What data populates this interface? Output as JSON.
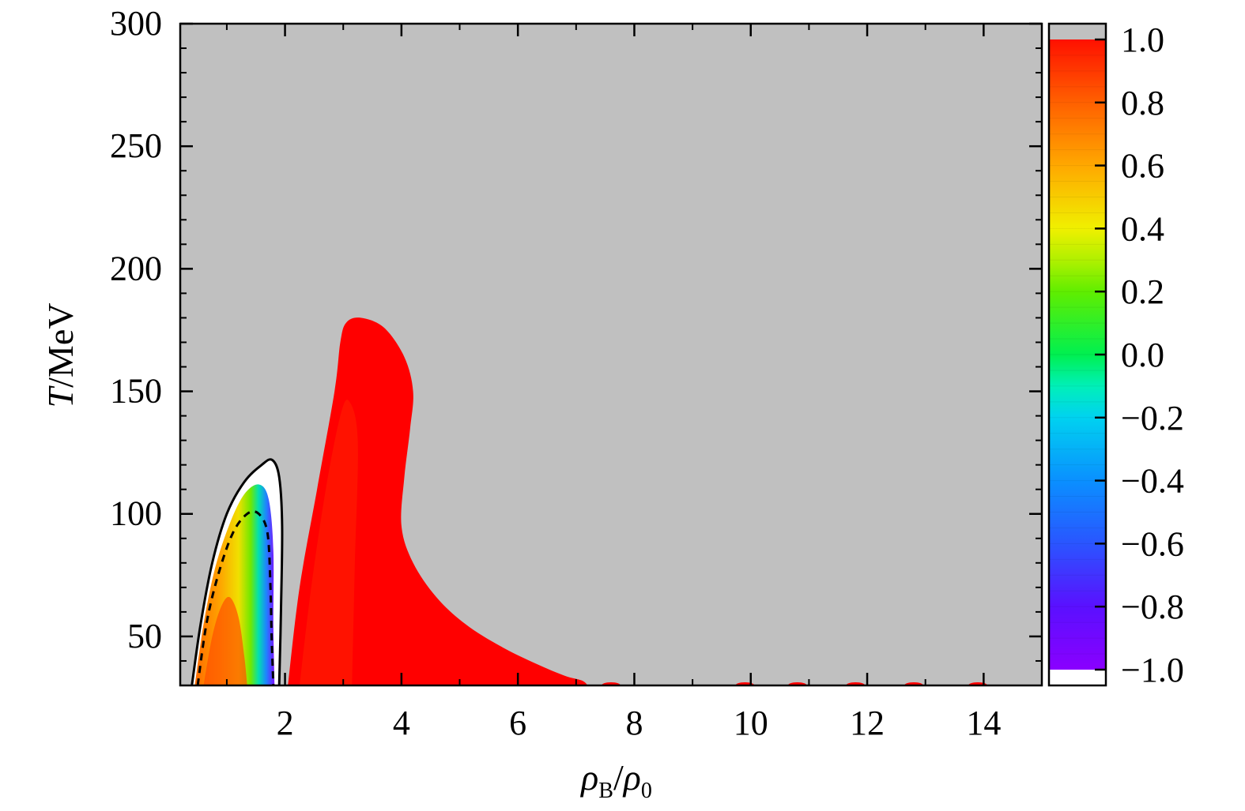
{
  "chart_data": {
    "type": "heatmap",
    "xlabel": {
      "main": "ρ",
      "sub1": "B",
      "slash": "/",
      "main2": "ρ",
      "sub2": "0"
    },
    "ylabel": {
      "italic": "T",
      "rest": "/MeV"
    },
    "xlim": [
      0.2,
      15
    ],
    "ylim": [
      30,
      300
    ],
    "x_ticks": [
      2,
      4,
      6,
      8,
      10,
      12,
      14
    ],
    "x_tick_labels": [
      "2",
      "4",
      "6",
      "8",
      "10",
      "12",
      "14"
    ],
    "y_ticks": [
      50,
      100,
      150,
      200,
      250,
      300
    ],
    "y_tick_labels": [
      "50",
      "100",
      "150",
      "200",
      "250",
      "300"
    ],
    "colorbar": {
      "range": [
        -1.0,
        1.0
      ],
      "ticks": [
        1.0,
        0.8,
        0.6,
        0.4,
        0.2,
        0.0,
        -0.2,
        -0.4,
        -0.6,
        -0.8,
        -1.0
      ],
      "tick_labels": [
        "1.0",
        "0.8",
        "0.6",
        "0.4",
        "0.2",
        "0.0",
        "−0.2",
        "−0.4",
        "−0.6",
        "−0.8",
        "−1.0"
      ],
      "above_range_color": "#c0c0c0",
      "below_range_color": "#ffffff"
    },
    "background_color": "#c0c0c0",
    "regions": [
      {
        "name": "region-red",
        "value": 1.0,
        "color": "#ff0000",
        "boundary": [
          [
            2.05,
            30
          ],
          [
            2.25,
            70
          ],
          [
            2.55,
            110
          ],
          [
            2.85,
            150
          ],
          [
            2.95,
            170
          ],
          [
            3.05,
            178
          ],
          [
            3.3,
            180
          ],
          [
            3.7,
            176
          ],
          [
            4.05,
            164
          ],
          [
            4.2,
            150
          ],
          [
            4.15,
            135
          ],
          [
            4.05,
            115
          ],
          [
            4.0,
            95
          ],
          [
            4.2,
            80
          ],
          [
            4.6,
            66
          ],
          [
            5.1,
            55
          ],
          [
            5.7,
            46
          ],
          [
            6.3,
            39
          ],
          [
            6.8,
            34
          ],
          [
            7.1,
            32
          ],
          [
            7.2,
            30
          ]
        ]
      },
      {
        "name": "region-low-density",
        "contour_fill": "value decreases from 1.0 near axis to -1.0 at edge",
        "outer_solid_boundary": [
          [
            0.4,
            30
          ],
          [
            0.55,
            55
          ],
          [
            0.75,
            80
          ],
          [
            1.0,
            100
          ],
          [
            1.3,
            113
          ],
          [
            1.6,
            120
          ],
          [
            1.78,
            122
          ],
          [
            1.9,
            115
          ],
          [
            1.95,
            95
          ],
          [
            1.93,
            60
          ],
          [
            1.9,
            30
          ]
        ],
        "dashed_boundary": [
          [
            0.5,
            30
          ],
          [
            0.65,
            55
          ],
          [
            0.85,
            75
          ],
          [
            1.1,
            92
          ],
          [
            1.35,
            100
          ],
          [
            1.55,
            100
          ],
          [
            1.7,
            92
          ],
          [
            1.75,
            70
          ],
          [
            1.77,
            50
          ],
          [
            1.8,
            30
          ]
        ]
      }
    ]
  }
}
